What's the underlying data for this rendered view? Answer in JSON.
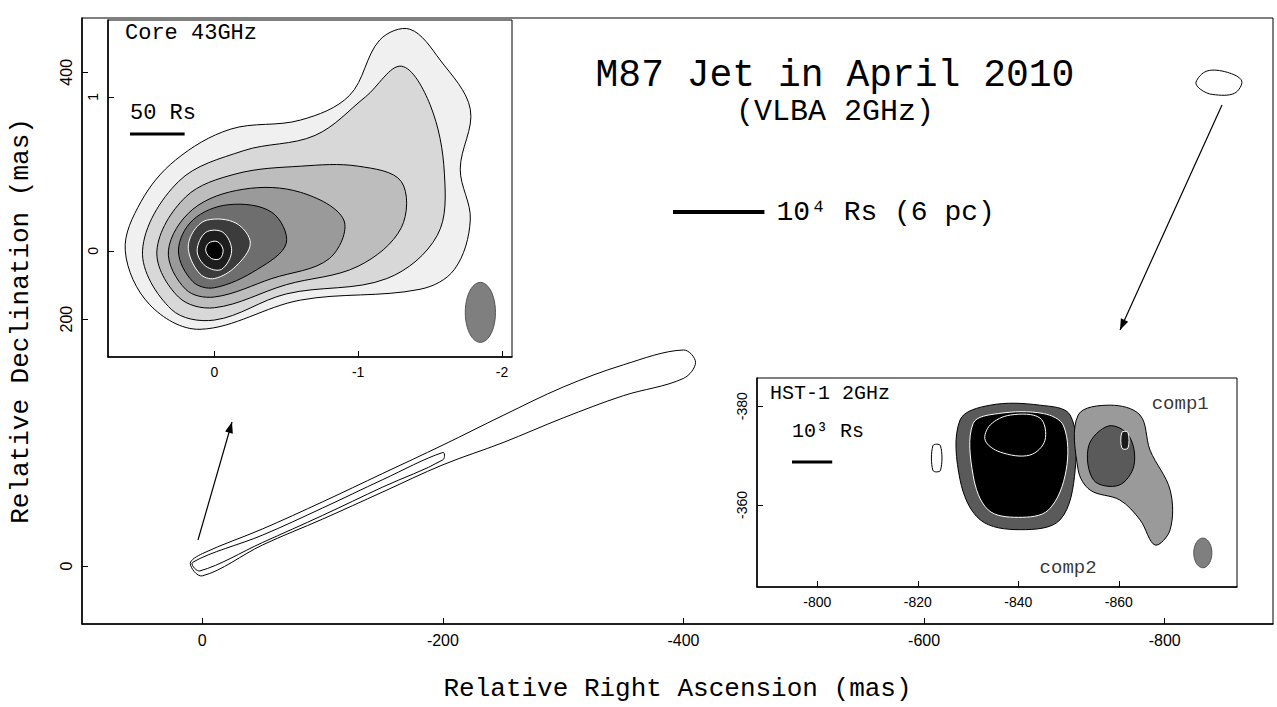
{
  "chart_data": [
    {
      "type": "contour",
      "title": "M87 Jet in April 2010",
      "subtitle": "(VLBA 2GHz)",
      "x_label": "Relative Right Ascension (mas)",
      "y_label": "Relative Declination (mas)",
      "xlim": [
        100,
        -890
      ],
      "xticks": [
        0,
        -200,
        -400,
        -600,
        -800
      ],
      "ylim": [
        -47,
        444
      ],
      "yticks": [
        0,
        200,
        400
      ],
      "contours": [
        {
          "x": [
            10,
            0,
            -50,
            -100,
            -150,
            -200,
            -250,
            -300,
            -350,
            -400,
            -410,
            -400,
            -350,
            -300,
            -250,
            -200,
            -150,
            -100,
            -50,
            0
          ],
          "y": [
            2,
            10,
            30,
            52,
            75,
            98,
            122,
            145,
            163,
            175,
            165,
            152,
            138,
            120,
            100,
            82,
            60,
            38,
            17,
            -8
          ]
        },
        {
          "x": [
            8,
            -50,
            -100,
            -150,
            -200,
            -200,
            -150,
            -100,
            -50,
            2
          ],
          "y": [
            3,
            25,
            47,
            70,
            92,
            86,
            64,
            41,
            19,
            -4
          ]
        },
        {
          "x": [
            -826,
            -835,
            -852,
            -864,
            -858,
            -840,
            -830
          ],
          "y": [
            392,
            401,
            400,
            393,
            383,
            382,
            386
          ]
        }
      ],
      "colors": [
        "#ffffff",
        "#ffffff",
        "#ffffff"
      ],
      "scale_bar": {
        "label": "10⁴ Rs (6 pc)",
        "length": 76
      }
    },
    {
      "type": "contour",
      "title": "Core 43GHz",
      "xlim": [
        0.74,
        -2.07
      ],
      "xticks": [
        0,
        -1,
        -2
      ],
      "ylim": [
        -0.69,
        1.5
      ],
      "yticks": [
        0,
        1
      ],
      "contours": [
        {
          "x": [
            0.62,
            0.45,
            0.1,
            -0.6,
            -1.43,
            -1.67,
            -1.78,
            -1.71,
            -1.78,
            -1.57,
            -1.36,
            -1.15,
            -0.94,
            -0.6,
            -0.11,
            0.27,
            0.51
          ],
          "y": [
            0,
            -0.35,
            -0.51,
            -0.32,
            -0.25,
            -0.12,
            0.2,
            0.53,
            0.92,
            1.24,
            1.44,
            1.37,
            1.01,
            0.85,
            0.79,
            0.59,
            0.32
          ]
        },
        {
          "x": [
            0.5,
            0.3,
            0,
            -0.5,
            -1.2,
            -1.55,
            -1.6,
            -1.5,
            -1.3,
            -1.05,
            -0.7,
            -0.2,
            0.25
          ],
          "y": [
            0,
            -0.38,
            -0.45,
            -0.28,
            -0.18,
            0.1,
            0.5,
            0.95,
            1.2,
            1.0,
            0.75,
            0.65,
            0.45
          ]
        },
        {
          "x": [
            0.4,
            0.25,
            0,
            -0.5,
            -1.0,
            -1.3,
            -1.3,
            -1.0,
            -0.6,
            -0.15,
            0.2
          ],
          "y": [
            0,
            -0.3,
            -0.37,
            -0.22,
            -0.1,
            0.15,
            0.45,
            0.55,
            0.55,
            0.5,
            0.35
          ]
        },
        {
          "x": [
            0.32,
            0.2,
            0,
            -0.4,
            -0.8,
            -0.9,
            -0.6,
            -0.2,
            0.15
          ],
          "y": [
            0,
            -0.25,
            -0.3,
            -0.18,
            -0.05,
            0.2,
            0.38,
            0.4,
            0.27
          ]
        },
        {
          "x": [
            0.25,
            0.15,
            0,
            -0.3,
            -0.5,
            -0.4,
            -0.1,
            0.15
          ],
          "y": [
            0,
            -0.2,
            -0.24,
            -0.12,
            0.05,
            0.25,
            0.3,
            0.2
          ]
        },
        {
          "x": [
            0.18,
            0.1,
            0,
            -0.15,
            -0.25,
            -0.15,
            0.05,
            0.15
          ],
          "y": [
            0,
            -0.15,
            -0.18,
            -0.1,
            0.05,
            0.18,
            0.2,
            0.12
          ]
        },
        {
          "x": [
            0.12,
            0.06,
            -0.05,
            -0.12,
            -0.06,
            0.06
          ],
          "y": [
            0,
            -0.1,
            -0.12,
            0,
            0.12,
            0.12
          ]
        },
        {
          "x": [
            0.06,
            0.02,
            -0.04,
            -0.06,
            -0.02,
            0.04
          ],
          "y": [
            0,
            -0.05,
            -0.05,
            0.01,
            0.06,
            0.05
          ]
        }
      ],
      "colors": [
        "#f0f0f0",
        "#d8d8d8",
        "#bdbdbd",
        "#9a9a9a",
        "#6e6e6e",
        "#3c3c3c",
        "#1e1e1e",
        "#000000"
      ],
      "beam": {
        "x": -1.85,
        "y": -0.4,
        "width": 0.21,
        "height": 0.39
      },
      "scale_bar": {
        "label": "50 Rs",
        "length": 0.38
      }
    },
    {
      "type": "contour",
      "title": "HST-1 2GHz",
      "xlim": [
        -788,
        -883.5
      ],
      "xticks": [
        -800,
        -820,
        -840,
        -860
      ],
      "ylim": [
        -343.4,
        -385.7
      ],
      "yticks": [
        -380,
        -360
      ],
      "contours": [
        {
          "x": [
            -828.4,
            -834.4,
            -844.3,
            -850.3,
            -851.3,
            -848.3,
            -840.4,
            -832.4,
            -828.4
          ],
          "y": [
            -377.2,
            -380.2,
            -380.2,
            -378.2,
            -367.1,
            -357.0,
            -355.0,
            -357.0,
            -365.1
          ]
        },
        {
          "x": [
            -831,
            -836,
            -845,
            -849,
            -849.5,
            -846,
            -840,
            -834,
            -831
          ],
          "y": [
            -376.5,
            -378.5,
            -378.5,
            -376,
            -367,
            -359,
            -357.5,
            -359,
            -366
          ]
        },
        {
          "x": [
            -834.4,
            -838.4,
            -844.3,
            -845.3,
            -842.3,
            -836.4,
            -833.4
          ],
          "y": [
            -376.2,
            -378.2,
            -377.6,
            -373.1,
            -370.1,
            -370.7,
            -373.1
          ]
        },
        {
          "x": [
            -851.9,
            -858.3,
            -864.2,
            -866.2,
            -870.2,
            -870.2,
            -867.2,
            -864.2,
            -860.2,
            -854.3,
            -851.9
          ],
          "y": [
            -378.2,
            -380.2,
            -378.2,
            -371.1,
            -363.0,
            -355.0,
            -351.9,
            -357.0,
            -361.0,
            -363.0,
            -367.1
          ]
        },
        {
          "x": [
            -854,
            -858,
            -862,
            -863,
            -860,
            -855
          ],
          "y": [
            -372,
            -376,
            -374,
            -368,
            -364,
            -365
          ]
        },
        {
          "x": [
            -860.6,
            -861.8,
            -861.8,
            -860.6
          ],
          "y": [
            -374.7,
            -374.7,
            -371.5,
            -371.5
          ]
        },
        {
          "x": [
            -823,
            -824.5,
            -824.5,
            -823
          ],
          "y": [
            -372,
            -372,
            -367,
            -367
          ]
        }
      ],
      "colors": [
        "#5a5a5a",
        "#000000",
        "#000000",
        "#9a9a9a",
        "#5a5a5a",
        "#1a1a1a",
        "#ffffff"
      ],
      "beam": {
        "x": -876.7,
        "y": -350.3,
        "width": 3.6,
        "height": 6
      },
      "scale_bar": {
        "label": "10³ Rs",
        "length": 8
      },
      "annotations": [
        {
          "text": "comp1",
          "x": -872.2,
          "y": -380.5
        },
        {
          "text": "comp2",
          "x": -849.9,
          "y": -347.3
        }
      ]
    }
  ]
}
